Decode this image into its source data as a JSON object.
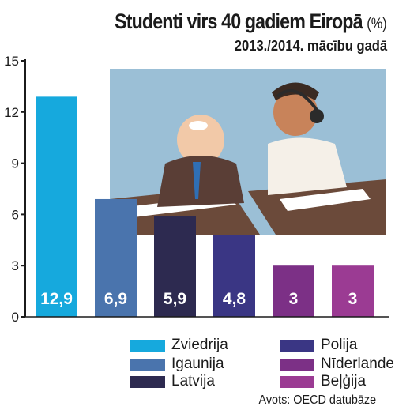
{
  "header": {
    "title": "Studenti virs 40 gadiem Eiropā",
    "title_unit": "(%)",
    "subtitle": "2013./2014. mācību gadā"
  },
  "source": "Avots: OECD datubāze",
  "illustration": {
    "description_icon": "students-at-desks-illustration"
  },
  "chart_data": {
    "type": "bar",
    "categories": [
      "Zviedrija",
      "Igaunija",
      "Latvija",
      "Polija",
      "Nīderlande",
      "Beļģija"
    ],
    "values": [
      12.9,
      6.9,
      5.9,
      4.8,
      3,
      3
    ],
    "value_labels": [
      "12,9",
      "6,9",
      "5,9",
      "4,8",
      "3",
      "3"
    ],
    "colors": [
      "#16a9dd",
      "#4a74ad",
      "#2d2a50",
      "#3a3684",
      "#7c3086",
      "#9b3b93"
    ],
    "title": "Studenti virs 40 gadiem Eiropā",
    "subtitle": "2013./2014. mācību gadā",
    "ylim": [
      0,
      15
    ],
    "yticks": [
      0,
      3,
      6,
      9,
      12,
      15
    ],
    "legend": "bottom"
  }
}
